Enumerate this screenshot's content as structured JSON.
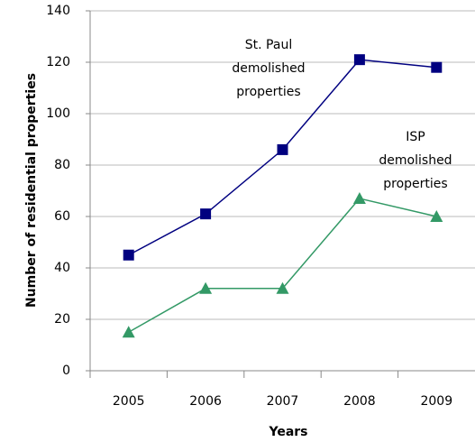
{
  "chart_data": {
    "type": "line",
    "x_label": "Years",
    "y_label": "Number of residential properties",
    "categories": [
      "2005",
      "2006",
      "2007",
      "2008",
      "2009"
    ],
    "ylim": [
      0,
      140
    ],
    "yticks": [
      0,
      20,
      40,
      60,
      80,
      100,
      120,
      140
    ],
    "grid": true,
    "series": [
      {
        "label": [
          "St. Paul",
          "demolished",
          "properties"
        ],
        "color": "#000080",
        "marker": "square",
        "values": [
          45,
          61,
          86,
          121,
          118
        ]
      },
      {
        "label": [
          "ISP",
          "demolished",
          "properties"
        ],
        "color": "#339966",
        "marker": "triangle",
        "values": [
          15,
          32,
          32,
          67,
          60
        ]
      }
    ]
  }
}
